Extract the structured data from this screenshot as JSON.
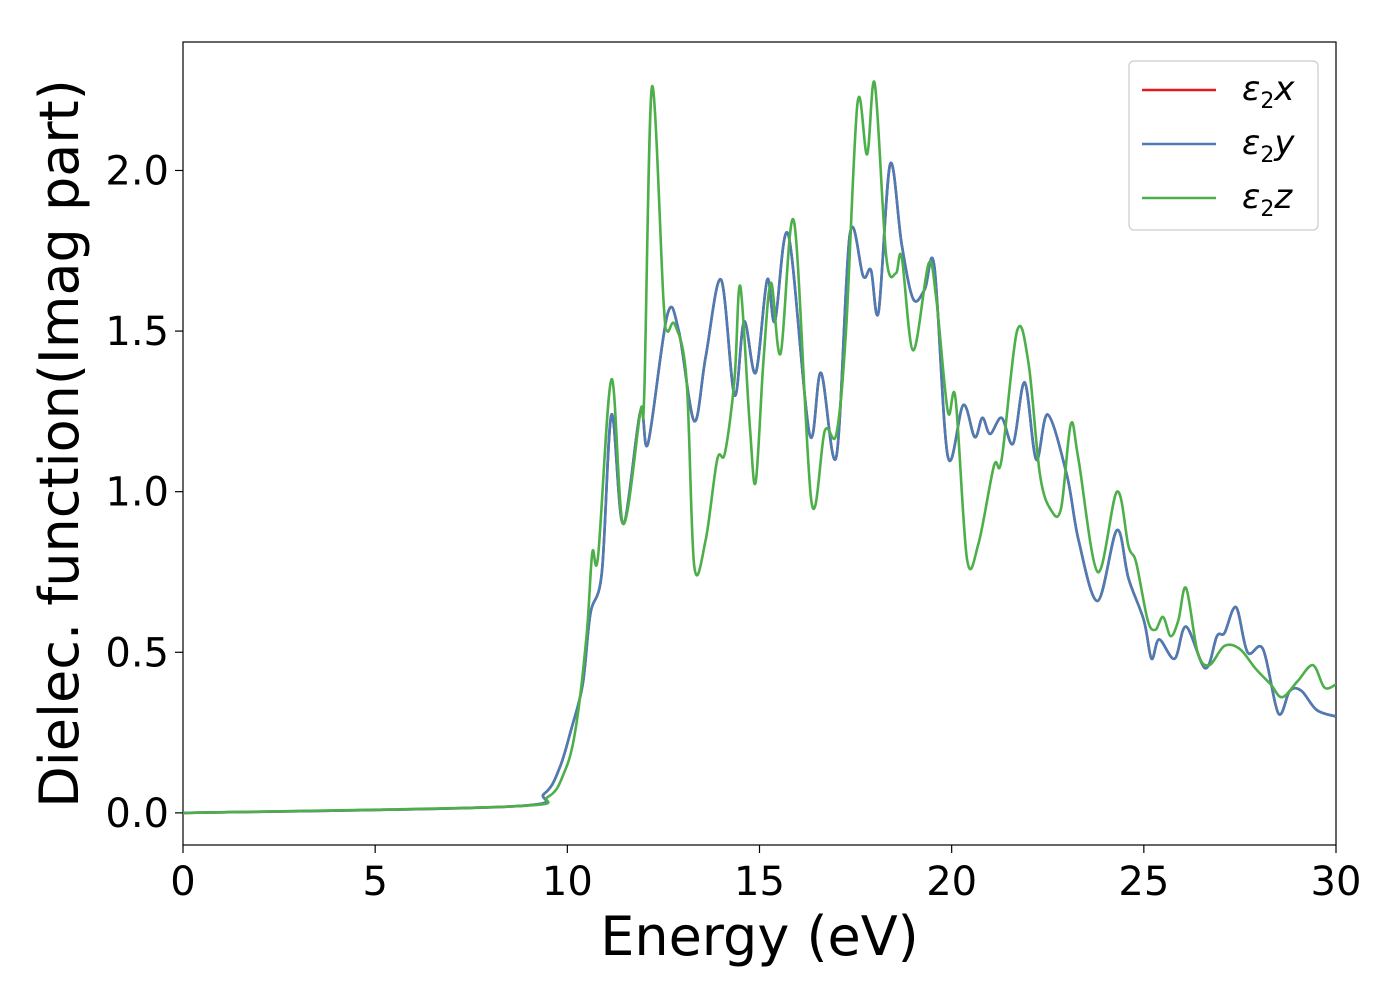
{
  "chart_data": {
    "type": "line",
    "xlabel": "Energy (eV)",
    "ylabel": "Dielec. function(Imag part)",
    "xlim": [
      0,
      30
    ],
    "ylim": [
      -0.1,
      2.4
    ],
    "xticks": [
      0,
      5,
      10,
      15,
      20,
      25,
      30
    ],
    "xtick_labels": [
      "0",
      "5",
      "10",
      "15",
      "20",
      "25",
      "30"
    ],
    "yticks": [
      0.0,
      0.5,
      1.0,
      1.5,
      2.0
    ],
    "ytick_labels": [
      "0.0",
      "0.5",
      "1.0",
      "1.5",
      "2.0"
    ],
    "grid": false,
    "legend_position": "top-right",
    "series": [
      {
        "name": "ε2x",
        "legend_main": "ε",
        "legend_sub": "2",
        "legend_var": "x",
        "color": "#e41a1c",
        "points": [
          [
            0,
            0.0
          ],
          [
            8.5,
            0.02
          ],
          [
            9.4,
            0.06
          ],
          [
            9.8,
            0.14
          ],
          [
            10.1,
            0.26
          ],
          [
            10.4,
            0.4
          ],
          [
            10.6,
            0.62
          ],
          [
            10.9,
            0.75
          ],
          [
            11.15,
            1.24
          ],
          [
            11.45,
            0.9
          ],
          [
            11.9,
            1.25
          ],
          [
            12.1,
            1.15
          ],
          [
            12.6,
            1.55
          ],
          [
            12.9,
            1.5
          ],
          [
            13.3,
            1.22
          ],
          [
            13.6,
            1.42
          ],
          [
            14.0,
            1.66
          ],
          [
            14.35,
            1.3
          ],
          [
            14.6,
            1.53
          ],
          [
            14.9,
            1.37
          ],
          [
            15.2,
            1.66
          ],
          [
            15.4,
            1.53
          ],
          [
            15.75,
            1.8
          ],
          [
            16.3,
            1.18
          ],
          [
            16.6,
            1.37
          ],
          [
            17.0,
            1.11
          ],
          [
            17.35,
            1.8
          ],
          [
            17.7,
            1.67
          ],
          [
            17.9,
            1.69
          ],
          [
            18.1,
            1.56
          ],
          [
            18.4,
            2.02
          ],
          [
            18.7,
            1.77
          ],
          [
            19.0,
            1.6
          ],
          [
            19.3,
            1.63
          ],
          [
            19.55,
            1.7
          ],
          [
            19.9,
            1.11
          ],
          [
            20.3,
            1.27
          ],
          [
            20.6,
            1.17
          ],
          [
            20.8,
            1.23
          ],
          [
            21.0,
            1.18
          ],
          [
            21.3,
            1.23
          ],
          [
            21.6,
            1.15
          ],
          [
            21.9,
            1.34
          ],
          [
            22.2,
            1.1
          ],
          [
            22.5,
            1.24
          ],
          [
            23.0,
            1.05
          ],
          [
            23.3,
            0.85
          ],
          [
            23.8,
            0.66
          ],
          [
            24.3,
            0.88
          ],
          [
            24.6,
            0.73
          ],
          [
            25.0,
            0.6
          ],
          [
            25.2,
            0.48
          ],
          [
            25.4,
            0.54
          ],
          [
            25.8,
            0.48
          ],
          [
            26.1,
            0.58
          ],
          [
            26.6,
            0.45
          ],
          [
            26.9,
            0.55
          ],
          [
            27.1,
            0.56
          ],
          [
            27.4,
            0.64
          ],
          [
            27.7,
            0.5
          ],
          [
            28.1,
            0.51
          ],
          [
            28.5,
            0.31
          ],
          [
            28.8,
            0.38
          ],
          [
            29.1,
            0.38
          ],
          [
            29.5,
            0.32
          ],
          [
            30.0,
            0.3
          ]
        ]
      },
      {
        "name": "ε2y",
        "legend_main": "ε",
        "legend_sub": "2",
        "legend_var": "y",
        "color": "#4a7db5",
        "points": [
          [
            0,
            0.0
          ],
          [
            8.5,
            0.02
          ],
          [
            9.4,
            0.06
          ],
          [
            9.8,
            0.14
          ],
          [
            10.1,
            0.26
          ],
          [
            10.4,
            0.4
          ],
          [
            10.6,
            0.62
          ],
          [
            10.9,
            0.75
          ],
          [
            11.15,
            1.24
          ],
          [
            11.45,
            0.9
          ],
          [
            11.9,
            1.25
          ],
          [
            12.1,
            1.15
          ],
          [
            12.6,
            1.55
          ],
          [
            12.9,
            1.5
          ],
          [
            13.3,
            1.22
          ],
          [
            13.6,
            1.42
          ],
          [
            14.0,
            1.66
          ],
          [
            14.35,
            1.3
          ],
          [
            14.6,
            1.53
          ],
          [
            14.9,
            1.37
          ],
          [
            15.2,
            1.66
          ],
          [
            15.4,
            1.53
          ],
          [
            15.75,
            1.8
          ],
          [
            16.3,
            1.18
          ],
          [
            16.6,
            1.37
          ],
          [
            17.0,
            1.11
          ],
          [
            17.35,
            1.8
          ],
          [
            17.7,
            1.67
          ],
          [
            17.9,
            1.69
          ],
          [
            18.1,
            1.56
          ],
          [
            18.4,
            2.02
          ],
          [
            18.7,
            1.77
          ],
          [
            19.0,
            1.6
          ],
          [
            19.3,
            1.63
          ],
          [
            19.55,
            1.7
          ],
          [
            19.9,
            1.11
          ],
          [
            20.3,
            1.27
          ],
          [
            20.6,
            1.17
          ],
          [
            20.8,
            1.23
          ],
          [
            21.0,
            1.18
          ],
          [
            21.3,
            1.23
          ],
          [
            21.6,
            1.15
          ],
          [
            21.9,
            1.34
          ],
          [
            22.2,
            1.1
          ],
          [
            22.5,
            1.24
          ],
          [
            23.0,
            1.05
          ],
          [
            23.3,
            0.85
          ],
          [
            23.8,
            0.66
          ],
          [
            24.3,
            0.88
          ],
          [
            24.6,
            0.73
          ],
          [
            25.0,
            0.6
          ],
          [
            25.2,
            0.48
          ],
          [
            25.4,
            0.54
          ],
          [
            25.8,
            0.48
          ],
          [
            26.1,
            0.58
          ],
          [
            26.6,
            0.45
          ],
          [
            26.9,
            0.55
          ],
          [
            27.1,
            0.56
          ],
          [
            27.4,
            0.64
          ],
          [
            27.7,
            0.5
          ],
          [
            28.1,
            0.51
          ],
          [
            28.5,
            0.31
          ],
          [
            28.8,
            0.38
          ],
          [
            29.1,
            0.38
          ],
          [
            29.5,
            0.32
          ],
          [
            30.0,
            0.3
          ]
        ]
      },
      {
        "name": "ε2z",
        "legend_main": "ε",
        "legend_sub": "2",
        "legend_var": "z",
        "color": "#4daf4a",
        "points": [
          [
            0,
            0.0
          ],
          [
            8.5,
            0.02
          ],
          [
            9.5,
            0.05
          ],
          [
            9.9,
            0.12
          ],
          [
            10.2,
            0.25
          ],
          [
            10.5,
            0.55
          ],
          [
            10.65,
            0.81
          ],
          [
            10.8,
            0.8
          ],
          [
            11.15,
            1.35
          ],
          [
            11.45,
            0.9
          ],
          [
            11.9,
            1.25
          ],
          [
            12.0,
            1.3
          ],
          [
            12.2,
            2.26
          ],
          [
            12.5,
            1.6
          ],
          [
            12.6,
            1.5
          ],
          [
            12.8,
            1.52
          ],
          [
            13.1,
            1.35
          ],
          [
            13.3,
            0.77
          ],
          [
            13.6,
            0.85
          ],
          [
            13.9,
            1.1
          ],
          [
            14.1,
            1.12
          ],
          [
            14.35,
            1.35
          ],
          [
            14.5,
            1.64
          ],
          [
            14.75,
            1.2
          ],
          [
            14.9,
            1.03
          ],
          [
            15.1,
            1.4
          ],
          [
            15.3,
            1.65
          ],
          [
            15.55,
            1.43
          ],
          [
            15.9,
            1.84
          ],
          [
            16.35,
            0.97
          ],
          [
            16.7,
            1.19
          ],
          [
            17.0,
            1.18
          ],
          [
            17.25,
            1.5
          ],
          [
            17.55,
            2.21
          ],
          [
            17.8,
            2.05
          ],
          [
            18.0,
            2.27
          ],
          [
            18.3,
            1.73
          ],
          [
            18.55,
            1.68
          ],
          [
            18.7,
            1.73
          ],
          [
            19.0,
            1.44
          ],
          [
            19.4,
            1.71
          ],
          [
            19.6,
            1.6
          ],
          [
            19.9,
            1.25
          ],
          [
            20.1,
            1.29
          ],
          [
            20.4,
            0.79
          ],
          [
            20.7,
            0.84
          ],
          [
            21.1,
            1.08
          ],
          [
            21.3,
            1.1
          ],
          [
            21.7,
            1.5
          ],
          [
            22.0,
            1.4
          ],
          [
            22.3,
            1.05
          ],
          [
            22.6,
            0.94
          ],
          [
            22.85,
            0.95
          ],
          [
            23.1,
            1.21
          ],
          [
            23.3,
            1.1
          ],
          [
            23.8,
            0.75
          ],
          [
            24.3,
            1.0
          ],
          [
            24.6,
            0.83
          ],
          [
            24.8,
            0.78
          ],
          [
            25.1,
            0.6
          ],
          [
            25.3,
            0.57
          ],
          [
            25.5,
            0.61
          ],
          [
            25.7,
            0.55
          ],
          [
            25.9,
            0.6
          ],
          [
            26.1,
            0.7
          ],
          [
            26.4,
            0.5
          ],
          [
            26.7,
            0.46
          ],
          [
            27.1,
            0.52
          ],
          [
            27.5,
            0.51
          ],
          [
            27.9,
            0.45
          ],
          [
            28.3,
            0.4
          ],
          [
            28.6,
            0.36
          ],
          [
            29.0,
            0.41
          ],
          [
            29.4,
            0.46
          ],
          [
            29.7,
            0.39
          ],
          [
            30.0,
            0.4
          ]
        ]
      }
    ]
  }
}
